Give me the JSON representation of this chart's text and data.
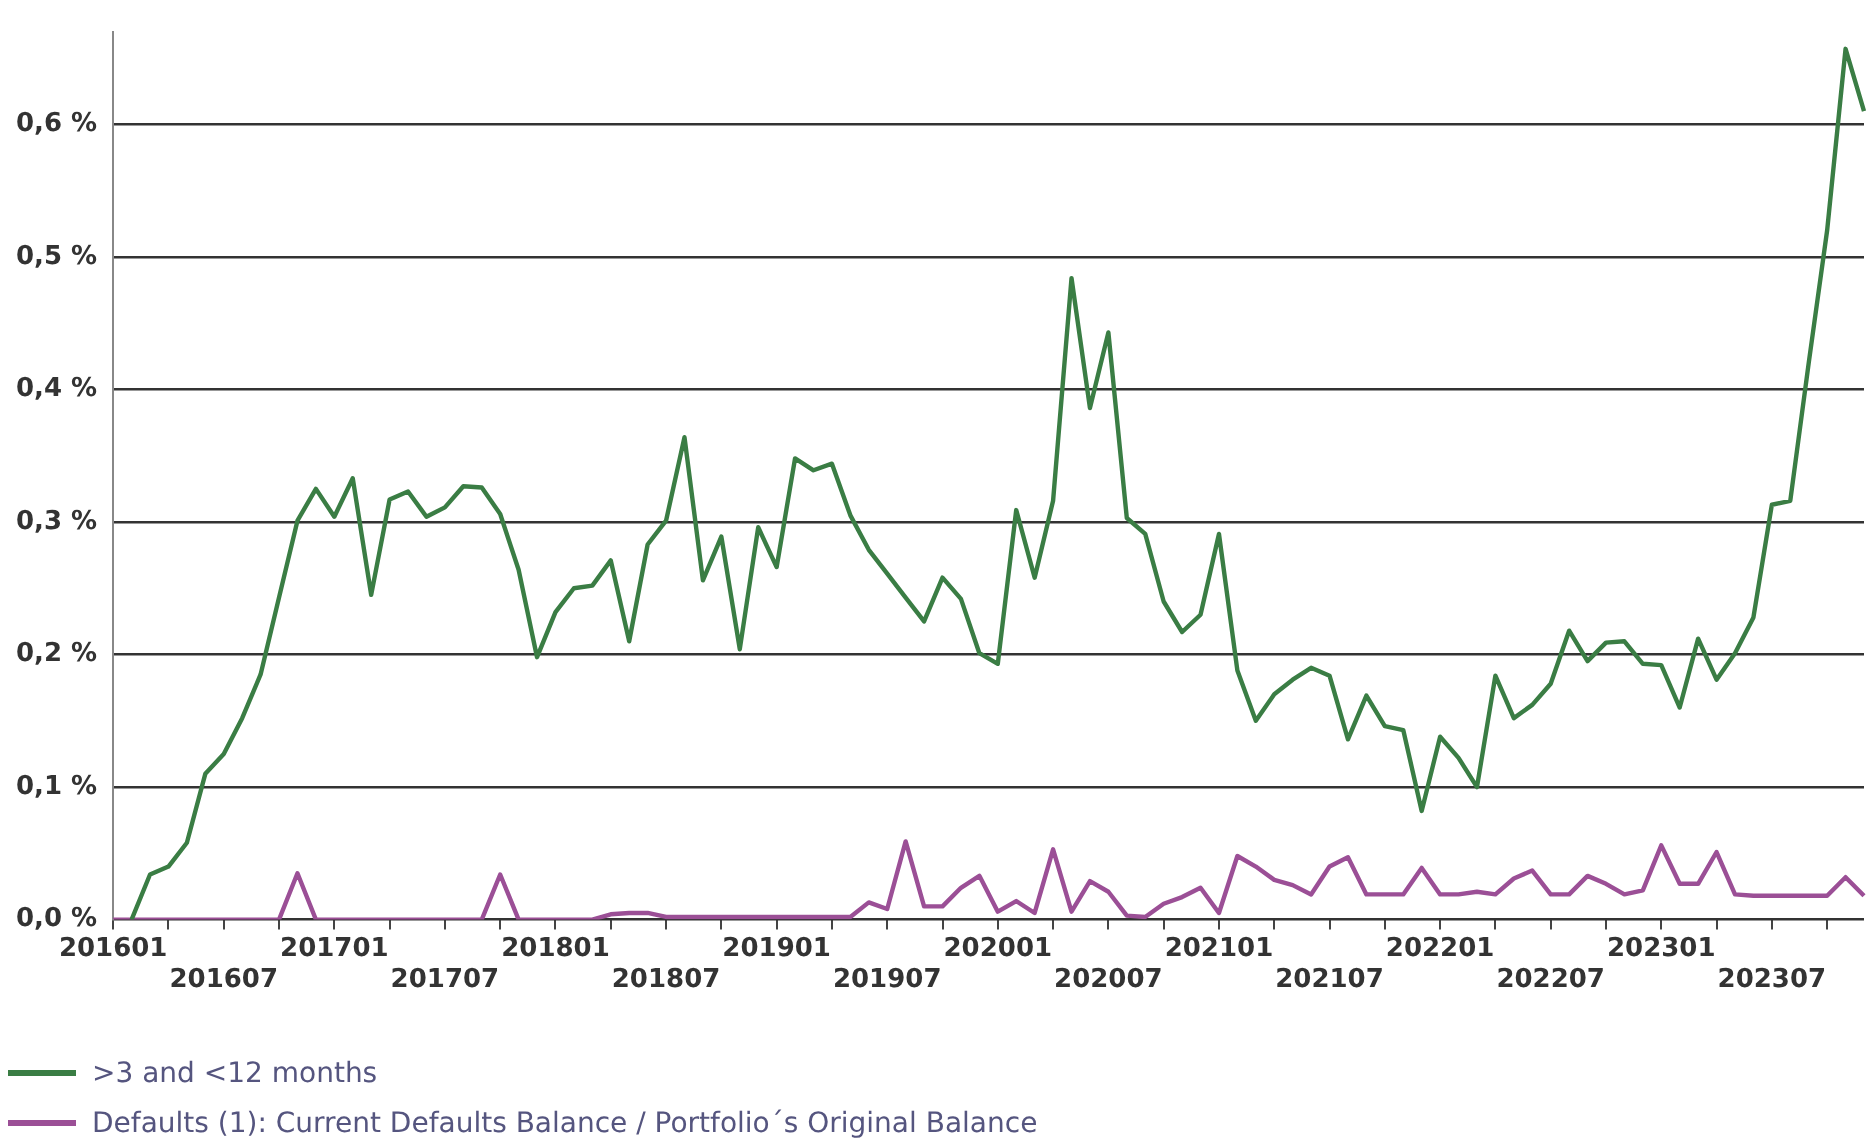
{
  "chart_data": {
    "type": "line",
    "categories": [
      "201601",
      null,
      null,
      null,
      null,
      null,
      "201607",
      null,
      null,
      null,
      null,
      null,
      "201701",
      null,
      null,
      null,
      null,
      null,
      "201707",
      null,
      null,
      null,
      null,
      null,
      "201801",
      null,
      null,
      null,
      null,
      null,
      "201807",
      null,
      null,
      null,
      null,
      null,
      "201901",
      null,
      null,
      null,
      null,
      null,
      "201907",
      null,
      null,
      null,
      null,
      null,
      "202001",
      null,
      null,
      null,
      null,
      null,
      "202007",
      null,
      null,
      null,
      null,
      null,
      "202101",
      null,
      null,
      null,
      null,
      null,
      "202107",
      null,
      null,
      null,
      null,
      null,
      "202201",
      null,
      null,
      null,
      null,
      null,
      "202207",
      null,
      null,
      null,
      null,
      null,
      "202301",
      null,
      null,
      null,
      null,
      null,
      "202307",
      null,
      null,
      null,
      null,
      null
    ],
    "series": [
      {
        "name": ">3 and <12 months",
        "color": "#3a7d44",
        "values": [
          null,
          0.0,
          0.034,
          0.04,
          0.058,
          0.11,
          0.125,
          0.152,
          0.185,
          0.243,
          0.301,
          0.325,
          0.304,
          0.333,
          0.245,
          0.317,
          0.323,
          0.304,
          0.311,
          0.327,
          0.326,
          0.306,
          0.264,
          0.198,
          0.232,
          0.25,
          0.252,
          0.271,
          0.21,
          0.283,
          0.301,
          0.364,
          0.256,
          0.289,
          0.204,
          0.296,
          0.266,
          0.348,
          0.339,
          0.344,
          0.305,
          0.279,
          0.261,
          0.243,
          0.225,
          0.258,
          0.242,
          0.201,
          0.193,
          0.309,
          0.258,
          0.316,
          0.484,
          0.386,
          0.443,
          0.303,
          0.291,
          0.24,
          0.217,
          0.23,
          0.291,
          0.188,
          0.15,
          0.17,
          0.181,
          0.19,
          0.184,
          0.136,
          0.169,
          0.146,
          0.143,
          0.082,
          0.138,
          0.122,
          0.1,
          0.184,
          0.152,
          0.162,
          0.178,
          0.218,
          0.195,
          0.209,
          0.21,
          0.193,
          0.192,
          0.16,
          0.212,
          0.181,
          0.201,
          0.228,
          0.313,
          0.316,
          0.42,
          0.52,
          0.657,
          0.61
        ]
      },
      {
        "name": "Defaults (1): Current Defaults Balance / Portfolio´s Original Balance",
        "color": "#9b4f96",
        "values": [
          0,
          0,
          0,
          0,
          0,
          0,
          0,
          0,
          0,
          0,
          0.035,
          0,
          0,
          0,
          0,
          0,
          0,
          0,
          0,
          0,
          0,
          0.034,
          0,
          0,
          0,
          0,
          0,
          0.004,
          0.005,
          0.005,
          0.002,
          0.002,
          0.002,
          0.002,
          0.002,
          0.002,
          0.002,
          0.002,
          0.002,
          0.002,
          0.002,
          0.013,
          0.008,
          0.059,
          0.01,
          0.01,
          0.024,
          0.033,
          0.006,
          0.014,
          0.005,
          0.053,
          0.006,
          0.029,
          0.021,
          0.003,
          0.002,
          0.012,
          0.017,
          0.024,
          0.005,
          0.048,
          0.04,
          0.03,
          0.026,
          0.019,
          0.04,
          0.047,
          0.019,
          0.019,
          0.019,
          0.039,
          0.019,
          0.019,
          0.021,
          0.019,
          0.031,
          0.037,
          0.019,
          0.019,
          0.033,
          0.027,
          0.019,
          0.022,
          0.056,
          0.027,
          0.027,
          0.051,
          0.019,
          0.018,
          0.018,
          0.018,
          0.018,
          0.018,
          0.032,
          0.018
        ]
      }
    ],
    "ylim": [
      0,
      0.67
    ],
    "yticks": [
      {
        "value": 0,
        "label": "0,0 %"
      },
      {
        "value": 0.1,
        "label": "0,1 %"
      },
      {
        "value": 0.2,
        "label": "0,2 %"
      },
      {
        "value": 0.3,
        "label": "0,3 %"
      },
      {
        "value": 0.4,
        "label": "0,4 %"
      },
      {
        "value": 0.5,
        "label": "0,5 %"
      },
      {
        "value": 0.6,
        "label": "0,6 %"
      }
    ],
    "grid": "y",
    "legend": "bottom left",
    "marker": "none",
    "line_style": "solid"
  }
}
